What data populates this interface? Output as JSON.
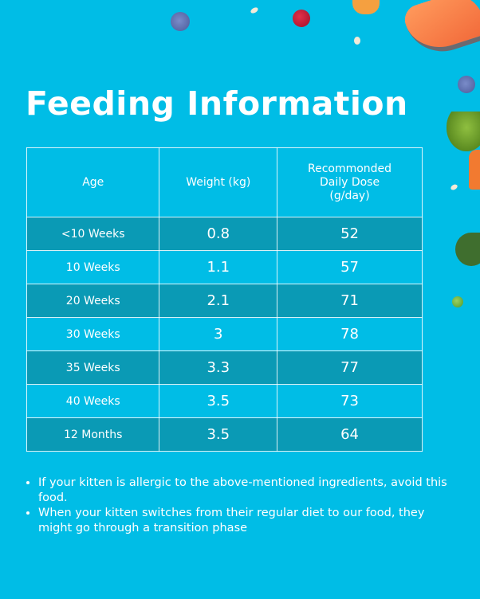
{
  "title": "Feeding Information",
  "table": {
    "headers": [
      "Age",
      "Weight (kg)",
      "Recommonded Daily Dose (g/day)"
    ],
    "rows": [
      {
        "age": "<10 Weeks",
        "weight": "0.8",
        "dose": "52"
      },
      {
        "age": "10 Weeks",
        "weight": "1.1",
        "dose": "57"
      },
      {
        "age": "20 Weeks",
        "weight": "2.1",
        "dose": "71"
      },
      {
        "age": "30 Weeks",
        "weight": "3",
        "dose": "78"
      },
      {
        "age": "35 Weeks",
        "weight": "3.3",
        "dose": "77"
      },
      {
        "age": "40 Weeks",
        "weight": "3.5",
        "dose": "73"
      },
      {
        "age": "12 Months",
        "weight": "3.5",
        "dose": "64"
      }
    ]
  },
  "notes": [
    "If your kitten is allergic to the above-mentioned ingredients, avoid this food.",
    "When your kitten switches from their regular diet to our food, they might go through a transition phase"
  ],
  "colors": {
    "background": "#00bde6",
    "row_dark": "#0a9ab5",
    "text": "#ffffff"
  },
  "decorations": [
    "blueberry-icon",
    "cranberry-icon",
    "oat-flake-icon",
    "carrot-slice-icon",
    "salmon-steak-icon",
    "carrot-icon",
    "spinach-leaf-icon",
    "pea-icon"
  ]
}
